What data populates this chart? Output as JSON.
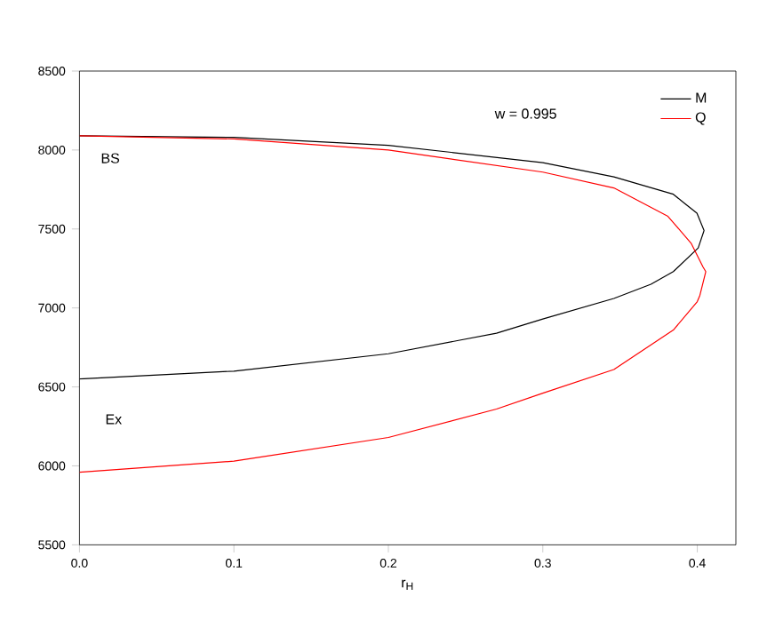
{
  "chart_data": {
    "type": "line",
    "xlabel": "r$_{H}$",
    "xlim": [
      0,
      0.425
    ],
    "ylim": [
      5500,
      8500
    ],
    "xticks": [
      {
        "value": 0,
        "label": "0.0"
      },
      0.1,
      0.2,
      0.3,
      0.4
    ],
    "yticks": [
      5500,
      6000,
      6500,
      7000,
      7500,
      8000,
      8500
    ],
    "legend": "top right",
    "grid": false,
    "marker": "none",
    "line_style": "solid",
    "annotations": [
      "w = 0.995",
      "BS",
      "Ex"
    ],
    "series": [
      {
        "name": "M",
        "color": "#000000",
        "x": [
          0,
          0.1,
          0.2,
          0.3,
          0.346,
          0.381,
          0.3845,
          0.392,
          0.3998,
          0.4044,
          0.4006,
          0.3845,
          0.37,
          0.346,
          0.3,
          0.27,
          0.2,
          0.1,
          0
        ],
        "values": [
          8090,
          8080,
          8030,
          7920,
          7830,
          7730,
          7720,
          7660,
          7600,
          7490,
          7380,
          7230,
          7150,
          7060,
          6930,
          6840,
          6710,
          6600,
          6550
        ]
      },
      {
        "name": "Q",
        "color": "#ff0000",
        "x": [
          0,
          0.1,
          0.2,
          0.3,
          0.346,
          0.381,
          0.396,
          0.4037,
          0.4055,
          0.4017,
          0.4,
          0.3845,
          0.346,
          0.3,
          0.27,
          0.2,
          0.1,
          0
        ],
        "values": [
          8090,
          8070,
          8000,
          7860,
          7760,
          7580,
          7410,
          7260,
          7230,
          7080,
          7040,
          6860,
          6610,
          6460,
          6360,
          6180,
          6030,
          5960
        ]
      }
    ]
  }
}
